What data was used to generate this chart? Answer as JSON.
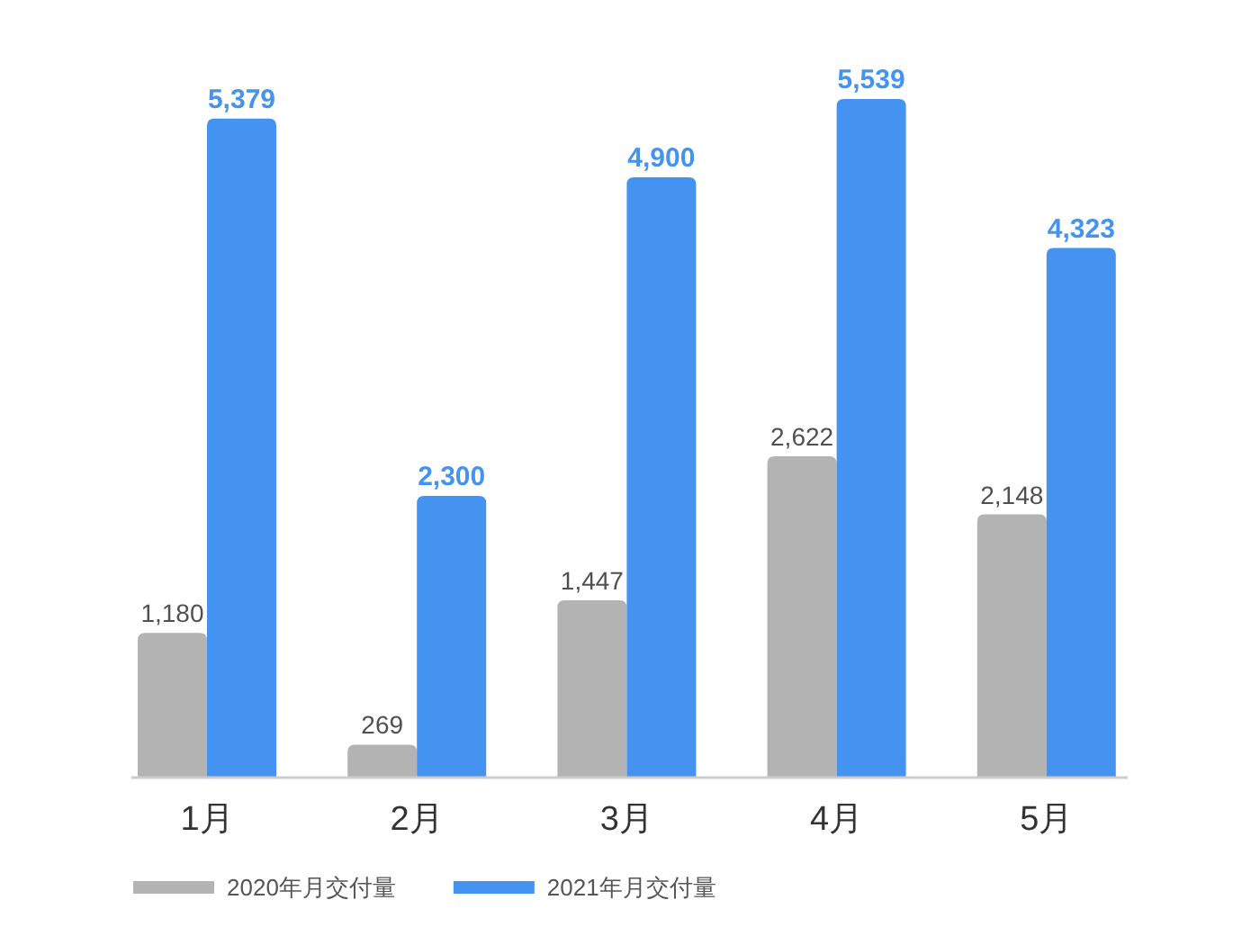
{
  "chart_data": {
    "type": "bar",
    "categories": [
      "1月",
      "2月",
      "3月",
      "4月",
      "5月"
    ],
    "series": [
      {
        "name": "2020年月交付量",
        "color": "#b3b3b3",
        "values": [
          1180,
          269,
          1447,
          2622,
          2148
        ],
        "value_labels": [
          "1,180",
          "269",
          "1,447",
          "2,622",
          "2,148"
        ]
      },
      {
        "name": "2021年月交付量",
        "color": "#4593f0",
        "values": [
          5379,
          2300,
          4900,
          5539,
          4323
        ],
        "value_labels": [
          "5,379",
          "2,300",
          "4,900",
          "5,539",
          "4,323"
        ]
      }
    ],
    "legend": "bottom"
  }
}
